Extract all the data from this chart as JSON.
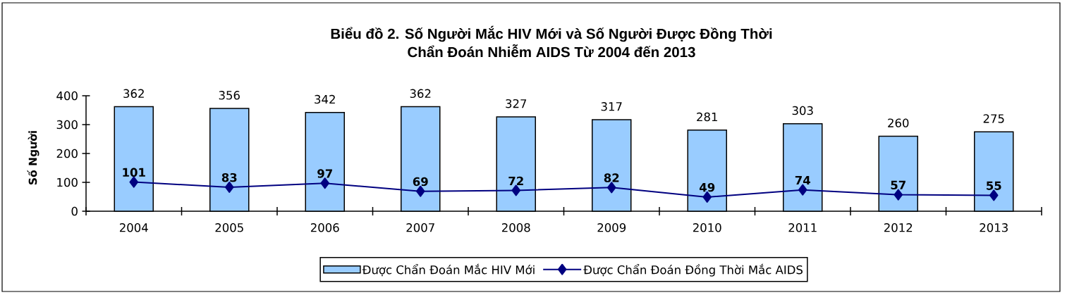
{
  "chart_data": {
    "type": "bar",
    "title": "Biểu đồ 2. Số Người Mắc HIV Mới và Số Người Được Đồng Thời Chẩn Đoán Nhiễm AIDS Từ 2004 đến 2013",
    "ylabel": "Số Người",
    "categories": [
      "2004",
      "2005",
      "2006",
      "2007",
      "2008",
      "2009",
      "2010",
      "2011",
      "2012",
      "2013"
    ],
    "series": [
      {
        "name": "Được Chẩn Đoán Mắc HIV Mới",
        "color": "#99ccff",
        "values": [
          362,
          356,
          342,
          362,
          327,
          317,
          281,
          303,
          260,
          275
        ]
      },
      {
        "name": "Được Chẩn Đoán Đồng Thời Mắc AIDS",
        "type": "line",
        "color": "#000080",
        "marker": "diamond",
        "values": [
          101,
          83,
          97,
          69,
          72,
          82,
          49,
          74,
          57,
          55
        ]
      }
    ],
    "ylim": [
      0,
      400
    ],
    "yticks": [
      0,
      100,
      200,
      300,
      400
    ],
    "data_labels": true,
    "legend": "bottom"
  }
}
